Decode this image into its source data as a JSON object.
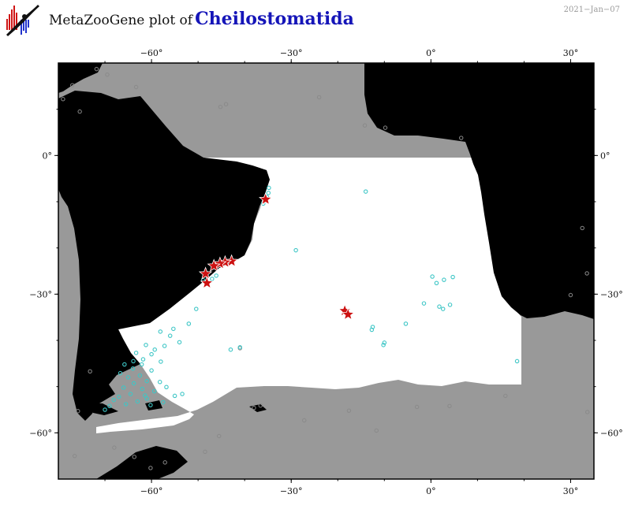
{
  "header": {
    "title_prefix": "MetaZooGene plot of",
    "taxon": "Cheilostomatida",
    "date": "2021−Jan−07"
  },
  "map": {
    "projection": "cylindrical",
    "lon_range": [
      -80,
      35
    ],
    "lat_range": [
      -70,
      20
    ],
    "lon_ticks": [
      {
        "value": -60,
        "label": "−60°"
      },
      {
        "value": -30,
        "label": "−30°"
      },
      {
        "value": 0,
        "label": "0°"
      },
      {
        "value": 30,
        "label": "30°"
      }
    ],
    "lat_ticks": [
      {
        "value": 0,
        "label": "0°"
      },
      {
        "value": -30,
        "label": "−30°"
      },
      {
        "value": -60,
        "label": "−60°"
      }
    ],
    "colors": {
      "ocean_outside": "#999999",
      "study_area": "#ffffff",
      "land": "#000000",
      "all_records": "#8a8a8a",
      "sampled_stations": "#3ec6c6",
      "taxon_records": "#cc1010"
    },
    "presence_records": [
      [
        -35.5,
        -9.5
      ],
      [
        -42.8,
        -22.9
      ],
      [
        -44.2,
        -23.1
      ],
      [
        -45.3,
        -23.4
      ],
      [
        -46.6,
        -23.9
      ],
      [
        -48.4,
        -25.6
      ],
      [
        -48.1,
        -27.6
      ],
      [
        -18.5,
        -33.6
      ],
      [
        -17.8,
        -34.4
      ]
    ],
    "stations": [
      [
        -34.8,
        -7.0
      ],
      [
        -34.9,
        -8.1
      ],
      [
        -35.2,
        -9.0
      ],
      [
        -36.0,
        -10.4
      ],
      [
        -14.0,
        -7.8
      ],
      [
        -29.0,
        -20.5
      ],
      [
        0.3,
        -26.2
      ],
      [
        1.2,
        -27.6
      ],
      [
        2.8,
        -26.9
      ],
      [
        4.7,
        -26.3
      ],
      [
        -1.5,
        -32.0
      ],
      [
        1.8,
        -32.7
      ],
      [
        2.6,
        -33.2
      ],
      [
        4.1,
        -32.3
      ],
      [
        -5.4,
        -36.4
      ],
      [
        -12.5,
        -37.1
      ],
      [
        -12.7,
        -37.7
      ],
      [
        -10.0,
        -40.5
      ],
      [
        -10.2,
        -41.0
      ],
      [
        -41.0,
        -41.5
      ],
      [
        -43.0,
        -42.0
      ],
      [
        18.5,
        -44.5
      ],
      [
        -46.1,
        -26.0
      ],
      [
        -47.0,
        -26.7
      ],
      [
        -48.9,
        -27.0
      ],
      [
        -50.4,
        -33.2
      ],
      [
        -52.0,
        -36.4
      ],
      [
        -55.3,
        -37.5
      ],
      [
        -58.1,
        -38.1
      ],
      [
        -56.0,
        -39.0
      ],
      [
        -54.0,
        -40.4
      ],
      [
        -57.2,
        -41.2
      ],
      [
        -61.2,
        -41.0
      ],
      [
        -63.3,
        -42.7
      ],
      [
        -60.0,
        -43.0
      ],
      [
        -58.0,
        -44.6
      ],
      [
        -62.1,
        -45.2
      ],
      [
        -64.0,
        -46.1
      ],
      [
        -60.0,
        -46.5
      ],
      [
        -62.5,
        -47.6
      ],
      [
        -65.0,
        -48.0
      ],
      [
        -61.0,
        -48.8
      ],
      [
        -63.8,
        -49.3
      ],
      [
        -66.0,
        -50.2
      ],
      [
        -62.0,
        -50.5
      ],
      [
        -59.4,
        -51.0
      ],
      [
        -64.5,
        -51.6
      ],
      [
        -67.0,
        -52.2
      ],
      [
        -61.0,
        -52.6
      ],
      [
        -63.0,
        -53.2
      ],
      [
        -65.5,
        -53.8
      ],
      [
        -60.2,
        -54.0
      ],
      [
        -57.5,
        -53.4
      ],
      [
        -55.0,
        -52.0
      ],
      [
        -56.8,
        -50.1
      ],
      [
        -58.2,
        -49.0
      ],
      [
        -65.8,
        -45.2
      ],
      [
        -61.8,
        -44.1
      ],
      [
        -59.3,
        -42.0
      ],
      [
        -63.9,
        -44.5
      ],
      [
        -66.7,
        -47.1
      ],
      [
        -68.1,
        -52.9
      ],
      [
        -69.0,
        -54.2
      ],
      [
        -70.0,
        -55.0
      ],
      [
        -61.4,
        -51.9
      ],
      [
        -53.4,
        -51.6
      ]
    ],
    "records": [
      [
        -71.8,
        18.7
      ],
      [
        -69.5,
        17.5
      ],
      [
        -77.0,
        15.2
      ],
      [
        -75.4,
        9.5
      ],
      [
        -79.0,
        12.2
      ],
      [
        -63.3,
        14.8
      ],
      [
        -44.0,
        11.1
      ],
      [
        -45.2,
        10.5
      ],
      [
        -24.0,
        12.6
      ],
      [
        -14.2,
        6.5
      ],
      [
        -9.8,
        6.0
      ],
      [
        6.5,
        3.8
      ],
      [
        -41.0,
        -41.7
      ],
      [
        -63.7,
        -65.2
      ],
      [
        -60.2,
        -67.6
      ],
      [
        -57.1,
        -66.4
      ],
      [
        -48.5,
        -64.1
      ],
      [
        -45.5,
        -60.7
      ],
      [
        -36.6,
        -54.1
      ],
      [
        -38.0,
        -54.6
      ],
      [
        -27.2,
        -57.3
      ],
      [
        -17.6,
        -55.2
      ],
      [
        -11.7,
        -59.5
      ],
      [
        -3.0,
        -54.4
      ],
      [
        4.0,
        -54.2
      ],
      [
        16.0,
        -52.0
      ],
      [
        30.0,
        -30.2
      ],
      [
        33.5,
        -25.5
      ],
      [
        32.5,
        -15.7
      ],
      [
        33.6,
        -55.5
      ],
      [
        -73.2,
        -46.7
      ],
      [
        -75.8,
        -55.3
      ],
      [
        -76.5,
        -65.0
      ],
      [
        -68.0,
        -63.2
      ]
    ],
    "legend": []
  }
}
